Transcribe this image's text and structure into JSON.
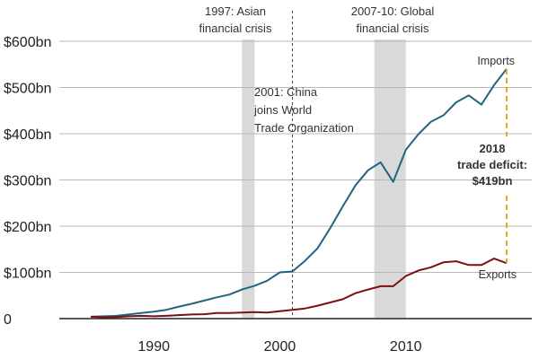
{
  "chart_data": {
    "type": "line",
    "title": "",
    "xlabel": "",
    "ylabel": "",
    "xlim": [
      1982.5,
      2020
    ],
    "ylim": [
      0,
      600
    ],
    "y_ticks": [
      0,
      100,
      200,
      300,
      400,
      500,
      600
    ],
    "y_tick_labels": [
      "0",
      "$100bn",
      "$200bn",
      "$300bn",
      "$400bn",
      "$500bn",
      "$600bn"
    ],
    "x_ticks": [
      1990,
      2000,
      2010
    ],
    "x_tick_labels": [
      "1990",
      "2000",
      "2010"
    ],
    "grid": true,
    "x": [
      1985,
      1986,
      1987,
      1988,
      1989,
      1990,
      1991,
      1992,
      1993,
      1994,
      1995,
      1996,
      1997,
      1998,
      1999,
      2000,
      2001,
      2002,
      2003,
      2004,
      2005,
      2006,
      2007,
      2008,
      2009,
      2010,
      2011,
      2012,
      2013,
      2014,
      2015,
      2016,
      2017,
      2018
    ],
    "series": [
      {
        "name": "Imports",
        "label": "Imports",
        "color": "#1f6680",
        "values": [
          4,
          5,
          6,
          9,
          12,
          15,
          19,
          26,
          32,
          39,
          46,
          52,
          63,
          71,
          82,
          100,
          102,
          125,
          152,
          196,
          243,
          288,
          321,
          338,
          296,
          365,
          399,
          426,
          440,
          468,
          483,
          463,
          505,
          540
        ]
      },
      {
        "name": "Exports",
        "label": "Exports",
        "color": "#7a1016",
        "values": [
          4,
          3,
          3.5,
          5,
          6,
          5,
          6,
          7.5,
          9,
          9.5,
          12,
          12,
          13,
          14,
          13,
          16,
          19,
          22,
          28,
          35,
          42,
          55,
          63,
          70,
          70,
          92,
          104,
          111,
          122,
          124,
          116,
          116,
          130,
          120
        ]
      }
    ],
    "shaded_periods": [
      {
        "name": "asian-crisis",
        "start": 1997,
        "end": 1998,
        "label_lines": [
          "1997: Asian",
          "financial crisis"
        ]
      },
      {
        "name": "global-crisis",
        "start": 2007.5,
        "end": 2010,
        "label_lines": [
          "2007-10: Global",
          "financial crisis"
        ]
      }
    ],
    "vlines": [
      {
        "name": "wto",
        "x": 2001,
        "label_lines": [
          "2001: China",
          "joins World",
          "Trade Organization"
        ]
      }
    ],
    "deficit": {
      "year": 2018,
      "imports_value": 540,
      "exports_value": 120,
      "color": "#e8a31a",
      "label_lines": [
        "2018",
        "trade deficit:",
        "$419bn"
      ]
    }
  }
}
